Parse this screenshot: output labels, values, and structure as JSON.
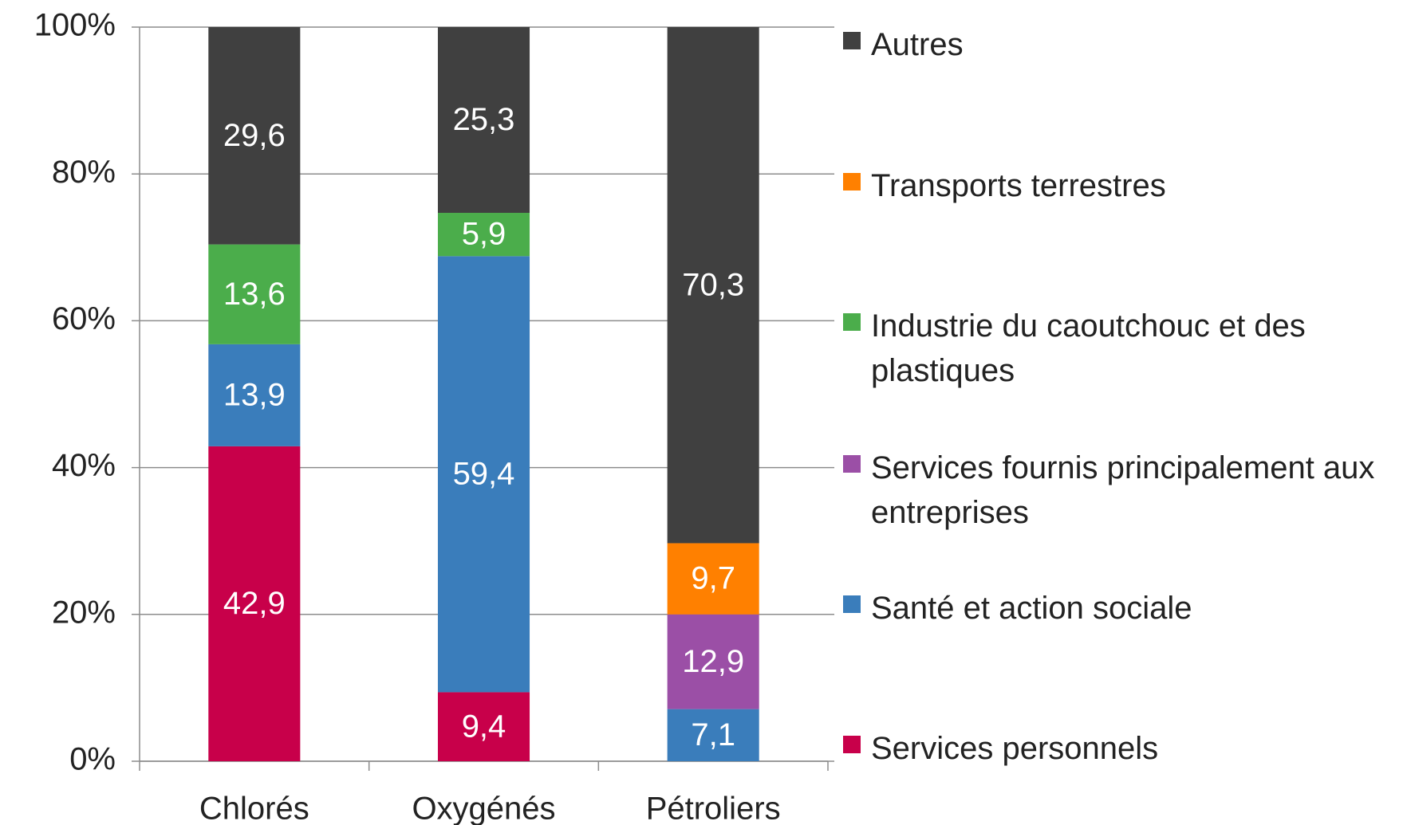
{
  "chart_data": {
    "type": "stacked_bar",
    "categories": [
      "Chlorés",
      "Oxygénés",
      "Pétroliers"
    ],
    "series": [
      {
        "name": "Services personnels",
        "color": "#c8004a",
        "values": [
          42.9,
          9.4,
          null
        ],
        "value_labels": [
          "42,9",
          "9,4",
          null
        ]
      },
      {
        "name": "Santé et action sociale",
        "color": "#3a7dbb",
        "values": [
          13.9,
          59.4,
          7.1
        ],
        "value_labels": [
          "13,9",
          "59,4",
          "7,1"
        ]
      },
      {
        "name": "Services fournis principalement aux entreprises",
        "color": "#9b4fa6",
        "values": [
          null,
          null,
          12.9
        ],
        "value_labels": [
          null,
          null,
          "12,9"
        ]
      },
      {
        "name": "Industrie du caoutchouc et des plastiques",
        "color": "#4bad4b",
        "values": [
          13.6,
          5.9,
          null
        ],
        "value_labels": [
          "13,6",
          "5,9",
          null
        ]
      },
      {
        "name": "Transports terrestres",
        "color": "#ff8000",
        "values": [
          null,
          null,
          9.7
        ],
        "value_labels": [
          null,
          null,
          "9,7"
        ]
      },
      {
        "name": "Autres",
        "color": "#404040",
        "values": [
          29.6,
          25.3,
          70.3
        ],
        "value_labels": [
          "29,6",
          "25,3",
          "70,3"
        ]
      }
    ],
    "ylim": [
      0,
      100
    ],
    "yticks": [
      {
        "value": 0,
        "label": "0%"
      },
      {
        "value": 20,
        "label": "20%"
      },
      {
        "value": 40,
        "label": "40%"
      },
      {
        "value": 60,
        "label": "60%"
      },
      {
        "value": 80,
        "label": "80%"
      },
      {
        "value": 100,
        "label": "100%"
      }
    ],
    "grid": true,
    "legend": "right"
  }
}
